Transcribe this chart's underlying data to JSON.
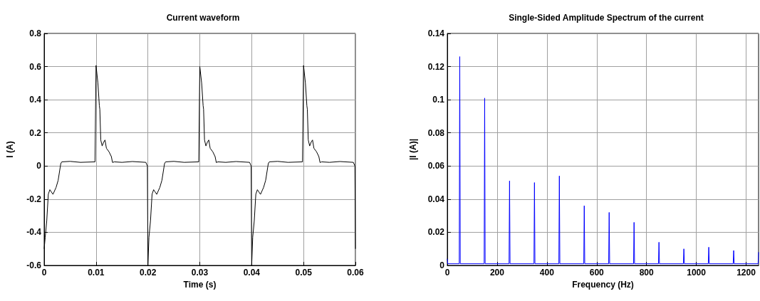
{
  "chart_data": [
    {
      "type": "line",
      "title": "Current waveform",
      "xlabel": "Time (s)",
      "ylabel": "I (A)",
      "xlim": [
        0,
        0.06
      ],
      "xticks": [
        0,
        0.01,
        0.02,
        0.03,
        0.04,
        0.05,
        0.06
      ],
      "ylim": [
        -0.6,
        0.8
      ],
      "yticks": [
        -0.6,
        -0.4,
        -0.2,
        0,
        0.2,
        0.4,
        0.6,
        0.8
      ],
      "grid": true,
      "marker": "none",
      "line_style": "solid",
      "series": [
        {
          "color": "#000000",
          "x": [
            0,
            0.0002,
            0.0005,
            0.0008,
            0.0011,
            0.0014,
            0.0017,
            0.0023,
            0.0027,
            0.0032,
            0.0034,
            0.005,
            0.007,
            0.0098,
            0.01,
            0.01036,
            0.01064,
            0.01073,
            0.01091,
            0.01118,
            0.01145,
            0.01173,
            0.012,
            0.0125,
            0.01295,
            0.01318,
            0.0135,
            0.015,
            0.017,
            0.0196,
            0.0199,
            0.02,
            0.0202,
            0.0205,
            0.0208,
            0.0211,
            0.0214,
            0.0217,
            0.0223,
            0.0227,
            0.0232,
            0.0234,
            0.025,
            0.027,
            0.0298,
            0.03,
            0.03036,
            0.03064,
            0.03073,
            0.03091,
            0.03118,
            0.03145,
            0.03173,
            0.032,
            0.0325,
            0.03295,
            0.03318,
            0.0335,
            0.035,
            0.037,
            0.0396,
            0.0399,
            0.04,
            0.0402,
            0.0405,
            0.0408,
            0.0411,
            0.0414,
            0.0417,
            0.0423,
            0.0427,
            0.0432,
            0.0434,
            0.045,
            0.047,
            0.0498,
            0.05,
            0.05036,
            0.05064,
            0.05073,
            0.05091,
            0.05118,
            0.05145,
            0.05173,
            0.052,
            0.0525,
            0.05295,
            0.05318,
            0.0535,
            0.055,
            0.057,
            0.0596,
            0.0599,
            0.06
          ],
          "values": [
            -0.5,
            -0.43,
            -0.33,
            -0.17,
            -0.143,
            -0.157,
            -0.171,
            -0.129,
            -0.086,
            0.014,
            0.025,
            0.028,
            0.022,
            0.025,
            0.607,
            0.5,
            0.364,
            0.343,
            0.157,
            0.121,
            0.143,
            0.157,
            0.107,
            0.086,
            0.057,
            0.021,
            0.025,
            0.022,
            0.027,
            0.022,
            0,
            -0.6,
            -0.43,
            -0.33,
            -0.17,
            -0.143,
            -0.157,
            -0.171,
            -0.129,
            -0.086,
            0.014,
            0.025,
            0.028,
            0.022,
            0.025,
            0.6,
            0.5,
            0.364,
            0.343,
            0.157,
            0.121,
            0.143,
            0.157,
            0.107,
            0.086,
            0.057,
            0.021,
            0.025,
            0.022,
            0.027,
            0.022,
            0,
            -0.6,
            -0.43,
            -0.33,
            -0.17,
            -0.143,
            -0.157,
            -0.171,
            -0.129,
            -0.086,
            0.014,
            0.025,
            0.028,
            0.022,
            0.025,
            0.607,
            0.5,
            0.364,
            0.343,
            0.157,
            0.121,
            0.143,
            0.157,
            0.107,
            0.086,
            0.057,
            0.021,
            0.025,
            0.022,
            0.027,
            0.022,
            0,
            -0.5
          ]
        }
      ]
    },
    {
      "type": "line",
      "title": "Single-Sided Amplitude Spectrum of the current",
      "xlabel": "Frequency (Hz)",
      "ylabel": "|I (A)|",
      "xlim": [
        0,
        1250
      ],
      "xticks": [
        0,
        200,
        400,
        600,
        800,
        1000,
        1200
      ],
      "ylim": [
        0,
        0.14
      ],
      "yticks": [
        0,
        0.02,
        0.04,
        0.06,
        0.08,
        0.1,
        0.12,
        0.14
      ],
      "grid": true,
      "marker": "none",
      "line_style": "solid",
      "series": [
        {
          "color": "#0000ff",
          "x": [
            0,
            2,
            48,
            50,
            52,
            148,
            150,
            152,
            248,
            250,
            252,
            348,
            350,
            352,
            448,
            450,
            452,
            548,
            550,
            552,
            648,
            650,
            652,
            748,
            750,
            752,
            848,
            850,
            852,
            948,
            950,
            952,
            1048,
            1050,
            1052,
            1148,
            1150,
            1152,
            1248,
            1250
          ],
          "values": [
            0.004,
            0.001,
            0.001,
            0.126,
            0.001,
            0.001,
            0.101,
            0.001,
            0.001,
            0.051,
            0.001,
            0.001,
            0.05,
            0.001,
            0.001,
            0.054,
            0.001,
            0.001,
            0.036,
            0.001,
            0.001,
            0.032,
            0.001,
            0.001,
            0.026,
            0.001,
            0.001,
            0.014,
            0.001,
            0.001,
            0.01,
            0.001,
            0.001,
            0.011,
            0.001,
            0.001,
            0.009,
            0.001,
            0.001,
            0.008
          ]
        }
      ]
    }
  ]
}
